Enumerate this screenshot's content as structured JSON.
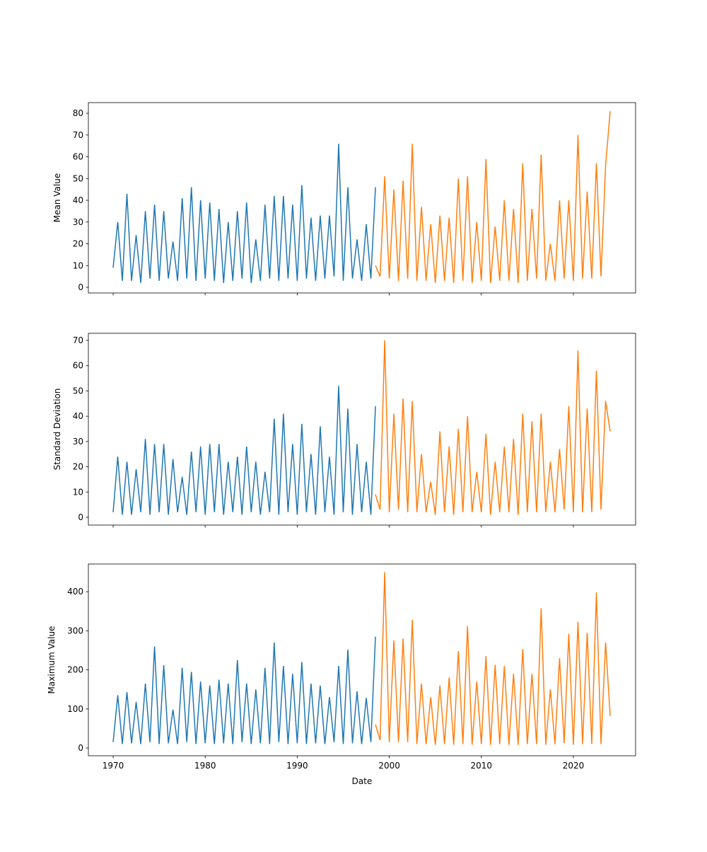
{
  "chart_data": [
    {
      "type": "line",
      "ylabel": "Mean Value",
      "xlim": [
        1967.31,
        2026.76
      ],
      "xticks": [
        1970,
        1980,
        1990,
        2000,
        2010,
        2020
      ],
      "ylim": [
        -2.6,
        84.9
      ],
      "yticks": [
        0,
        10,
        20,
        30,
        40,
        50,
        60,
        70,
        80
      ],
      "series": [
        {
          "color": "#1f77b4",
          "x": [
            1970,
            1970.5,
            1971,
            1971.5,
            1972,
            1972.5,
            1973,
            1973.5,
            1974,
            1974.5,
            1975,
            1975.5,
            1976,
            1976.5,
            1977,
            1977.5,
            1978,
            1978.5,
            1979,
            1979.5,
            1980,
            1980.5,
            1981,
            1981.5,
            1982,
            1982.5,
            1983,
            1983.5,
            1984,
            1984.5,
            1985,
            1985.5,
            1986,
            1986.5,
            1987,
            1987.5,
            1988,
            1988.5,
            1989,
            1989.5,
            1990,
            1990.5,
            1991,
            1991.5,
            1992,
            1992.5,
            1993,
            1993.5,
            1994,
            1994.5,
            1995,
            1995.5,
            1996,
            1996.5,
            1997,
            1997.5,
            1998,
            1998.5
          ],
          "values": [
            9,
            30,
            3,
            43,
            3,
            24,
            2,
            35,
            4,
            38,
            3,
            35,
            4,
            21,
            3,
            41,
            4,
            46,
            3,
            40,
            4,
            39,
            3,
            36,
            2,
            30,
            3,
            35,
            4,
            39,
            2,
            22,
            3,
            38,
            4,
            42,
            3,
            42,
            4,
            38,
            3,
            47,
            4,
            32,
            3,
            33,
            4,
            33,
            5,
            66,
            3,
            46,
            4,
            22,
            3,
            29,
            4,
            46
          ]
        },
        {
          "color": "#ff7f0e",
          "x": [
            1998.5,
            1999,
            1999.5,
            2000,
            2000.5,
            2001,
            2001.5,
            2002,
            2002.5,
            2003,
            2003.5,
            2004,
            2004.5,
            2005,
            2005.5,
            2006,
            2006.5,
            2007,
            2007.5,
            2008,
            2008.5,
            2009,
            2009.5,
            2010,
            2010.5,
            2011,
            2011.5,
            2012,
            2012.5,
            2013,
            2013.5,
            2014,
            2014.5,
            2015,
            2015.5,
            2016,
            2016.5,
            2017,
            2017.5,
            2018,
            2018.5,
            2019,
            2019.5,
            2020,
            2020.5,
            2021,
            2021.5,
            2022,
            2022.5,
            2023,
            2023.5,
            2024
          ],
          "values": [
            10,
            5,
            51,
            4,
            45,
            3,
            49,
            4,
            66,
            3,
            37,
            3,
            29,
            2,
            33,
            3,
            32,
            2,
            50,
            3,
            51,
            2,
            30,
            3,
            59,
            2,
            28,
            3,
            40,
            3,
            36,
            2,
            57,
            3,
            36,
            4,
            61,
            3,
            20,
            3,
            40,
            4,
            40,
            3,
            70,
            4,
            44,
            4,
            57,
            5,
            56,
            81
          ]
        }
      ]
    },
    {
      "type": "line",
      "ylabel": "Standard Deviation",
      "xlim": [
        1967.31,
        2026.76
      ],
      "xticks": [
        1970,
        1980,
        1990,
        2000,
        2010,
        2020
      ],
      "ylim": [
        -3.08,
        72.8
      ],
      "yticks": [
        0,
        10,
        20,
        30,
        40,
        50,
        60,
        70
      ],
      "series": [
        {
          "color": "#1f77b4",
          "x": [
            1970,
            1970.5,
            1971,
            1971.5,
            1972,
            1972.5,
            1973,
            1973.5,
            1974,
            1974.5,
            1975,
            1975.5,
            1976,
            1976.5,
            1977,
            1977.5,
            1978,
            1978.5,
            1979,
            1979.5,
            1980,
            1980.5,
            1981,
            1981.5,
            1982,
            1982.5,
            1983,
            1983.5,
            1984,
            1984.5,
            1985,
            1985.5,
            1986,
            1986.5,
            1987,
            1987.5,
            1988,
            1988.5,
            1989,
            1989.5,
            1990,
            1990.5,
            1991,
            1991.5,
            1992,
            1992.5,
            1993,
            1993.5,
            1994,
            1994.5,
            1995,
            1995.5,
            1996,
            1996.5,
            1997,
            1997.5,
            1998,
            1998.5
          ],
          "values": [
            2,
            24,
            1,
            22,
            1,
            19,
            2,
            31,
            1,
            29,
            2,
            29,
            1,
            23,
            2,
            16,
            1,
            26,
            2,
            28,
            1,
            29,
            2,
            29,
            1,
            22,
            2,
            24,
            1,
            28,
            2,
            22,
            1,
            18,
            2,
            39,
            1,
            41,
            2,
            29,
            1,
            37,
            2,
            25,
            1,
            36,
            2,
            24,
            1,
            52,
            2,
            43,
            1,
            29,
            2,
            22,
            1,
            44
          ]
        },
        {
          "color": "#ff7f0e",
          "x": [
            1998.5,
            1999,
            1999.5,
            2000,
            2000.5,
            2001,
            2001.5,
            2002,
            2002.5,
            2003,
            2003.5,
            2004,
            2004.5,
            2005,
            2005.5,
            2006,
            2006.5,
            2007,
            2007.5,
            2008,
            2008.5,
            2009,
            2009.5,
            2010,
            2010.5,
            2011,
            2011.5,
            2012,
            2012.5,
            2013,
            2013.5,
            2014,
            2014.5,
            2015,
            2015.5,
            2016,
            2016.5,
            2017,
            2017.5,
            2018,
            2018.5,
            2019,
            2019.5,
            2020,
            2020.5,
            2021,
            2021.5,
            2022,
            2022.5,
            2023,
            2023.5,
            2024
          ],
          "values": [
            9,
            3,
            70,
            2,
            41,
            3,
            47,
            2,
            46,
            2,
            25,
            2,
            14,
            1,
            34,
            2,
            28,
            1,
            35,
            2,
            40,
            2,
            18,
            2,
            33,
            1,
            22,
            2,
            28,
            2,
            31,
            1,
            41,
            2,
            38,
            2,
            41,
            2,
            22,
            2,
            27,
            3,
            44,
            2,
            66,
            2,
            43,
            2,
            58,
            3,
            46,
            34
          ]
        }
      ]
    },
    {
      "type": "line",
      "ylabel": "Maximum Value",
      "xlabel": "Date",
      "xlim": [
        1967.31,
        2026.76
      ],
      "xticks": [
        1970,
        1980,
        1990,
        2000,
        2010,
        2020
      ],
      "ylim": [
        -19.9,
        471
      ],
      "yticks": [
        0,
        100,
        200,
        300,
        400
      ],
      "series": [
        {
          "color": "#1f77b4",
          "x": [
            1970,
            1970.5,
            1971,
            1971.5,
            1972,
            1972.5,
            1973,
            1973.5,
            1974,
            1974.5,
            1975,
            1975.5,
            1976,
            1976.5,
            1977,
            1977.5,
            1978,
            1978.5,
            1979,
            1979.5,
            1980,
            1980.5,
            1981,
            1981.5,
            1982,
            1982.5,
            1983,
            1983.5,
            1984,
            1984.5,
            1985,
            1985.5,
            1986,
            1986.5,
            1987,
            1987.5,
            1988,
            1988.5,
            1989,
            1989.5,
            1990,
            1990.5,
            1991,
            1991.5,
            1992,
            1992.5,
            1993,
            1993.5,
            1994,
            1994.5,
            1995,
            1995.5,
            1996,
            1996.5,
            1997,
            1997.5,
            1998,
            1998.5
          ],
          "values": [
            15,
            135,
            10,
            143,
            12,
            118,
            10,
            165,
            15,
            260,
            10,
            212,
            12,
            98,
            10,
            205,
            15,
            195,
            10,
            170,
            12,
            160,
            10,
            175,
            12,
            165,
            10,
            225,
            15,
            165,
            10,
            150,
            12,
            205,
            10,
            270,
            15,
            210,
            10,
            190,
            12,
            220,
            10,
            165,
            12,
            160,
            10,
            130,
            15,
            210,
            10,
            252,
            12,
            145,
            10,
            128,
            15,
            285
          ]
        },
        {
          "color": "#ff7f0e",
          "x": [
            1998.5,
            1999,
            1999.5,
            2000,
            2000.5,
            2001,
            2001.5,
            2002,
            2002.5,
            2003,
            2003.5,
            2004,
            2004.5,
            2005,
            2005.5,
            2006,
            2006.5,
            2007,
            2007.5,
            2008,
            2008.5,
            2009,
            2009.5,
            2010,
            2010.5,
            2011,
            2011.5,
            2012,
            2012.5,
            2013,
            2013.5,
            2014,
            2014.5,
            2015,
            2015.5,
            2016,
            2016.5,
            2017,
            2017.5,
            2018,
            2018.5,
            2019,
            2019.5,
            2020,
            2020.5,
            2021,
            2021.5,
            2022,
            2022.5,
            2023,
            2023.5,
            2024
          ],
          "values": [
            60,
            20,
            450,
            15,
            275,
            15,
            280,
            15,
            328,
            10,
            165,
            10,
            130,
            8,
            160,
            10,
            180,
            8,
            248,
            10,
            312,
            8,
            170,
            10,
            235,
            8,
            213,
            10,
            210,
            8,
            190,
            8,
            253,
            10,
            190,
            10,
            358,
            8,
            150,
            10,
            230,
            12,
            292,
            8,
            323,
            10,
            295,
            10,
            398,
            10,
            270,
            82
          ]
        }
      ]
    }
  ]
}
